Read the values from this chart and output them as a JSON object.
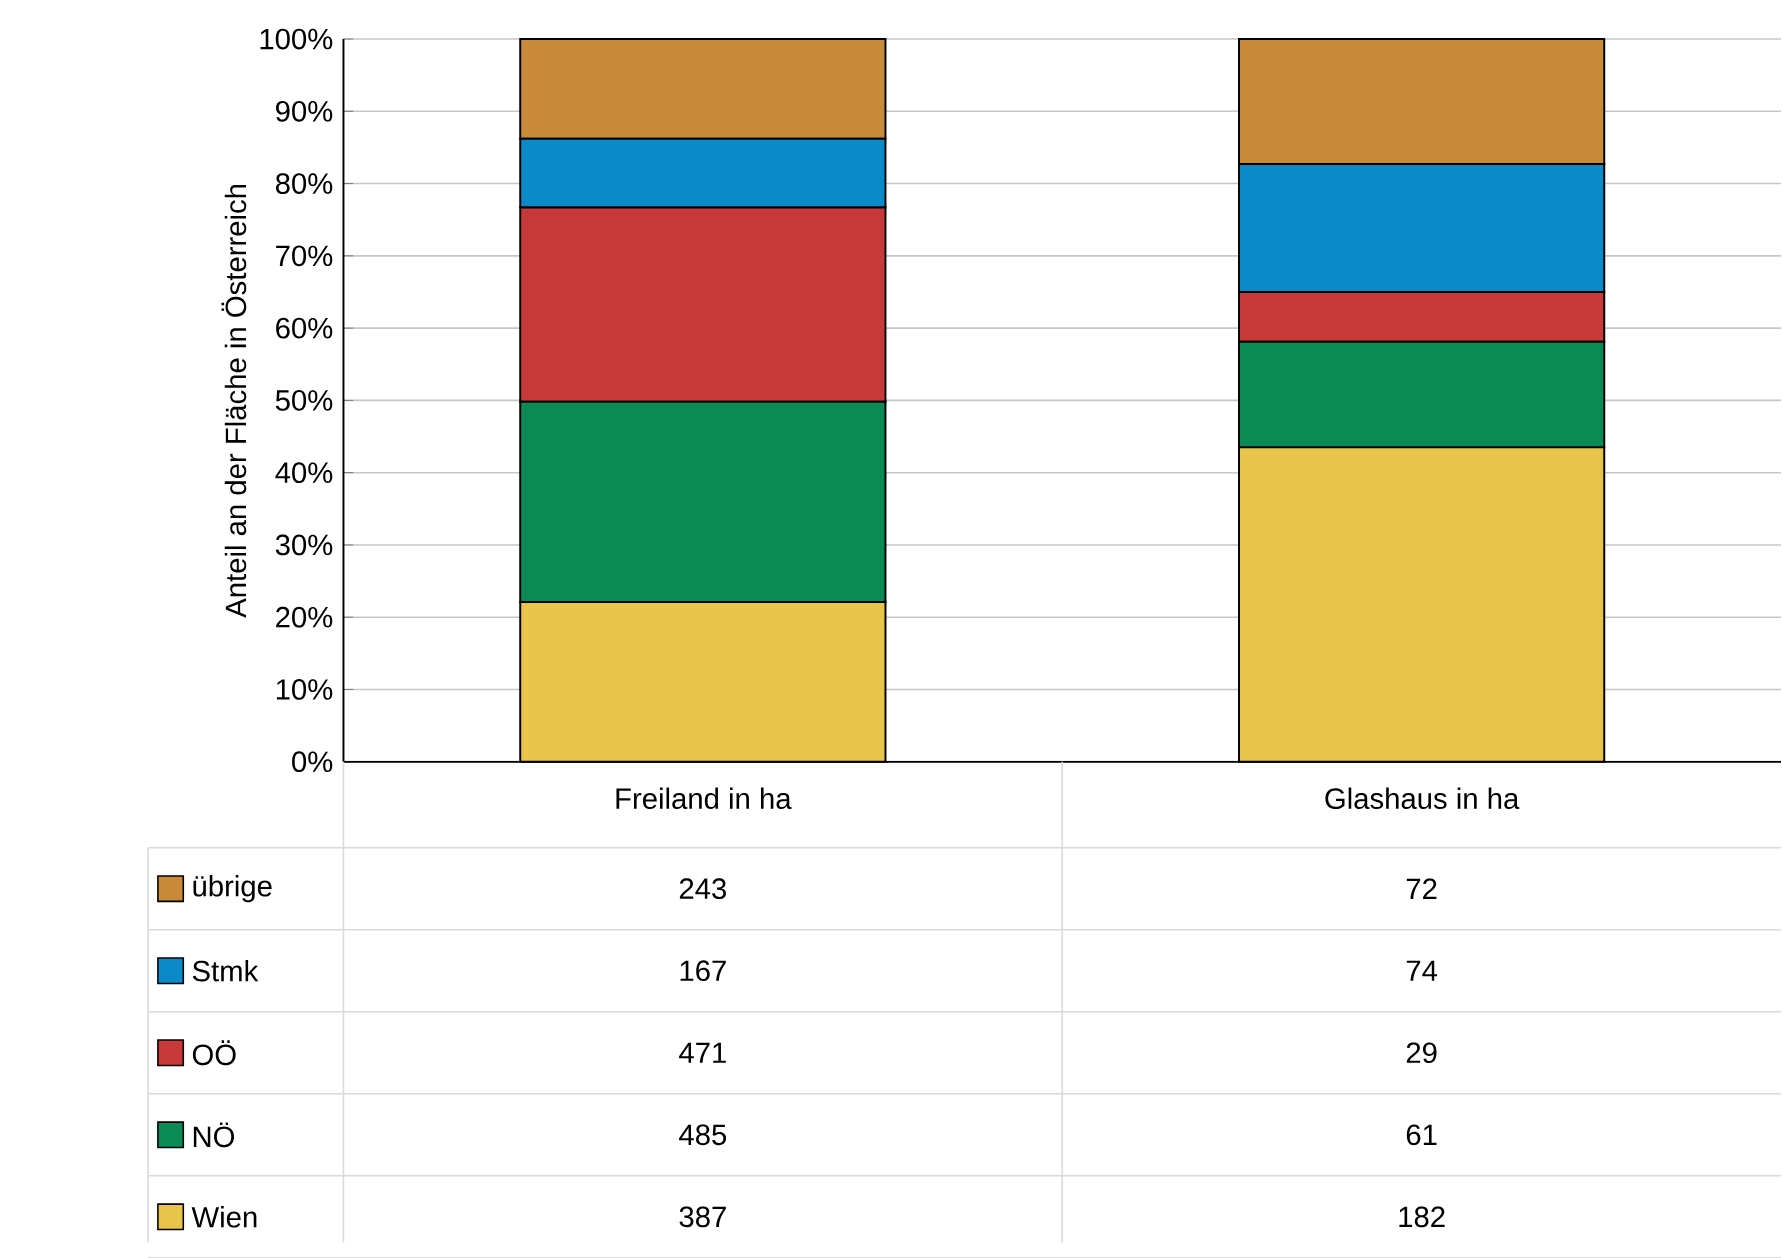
{
  "chart_data": {
    "type": "bar",
    "stacked": true,
    "ylabel": "Anteil an der Fläche in Österreich",
    "categories": [
      "Freiland in ha",
      "Glashaus in ha"
    ],
    "series": [
      {
        "name": "Wien",
        "color": "#e8c44a",
        "values": [
          22.1,
          43.5
        ]
      },
      {
        "name": "NÖ",
        "color": "#0a8a55",
        "values": [
          27.7,
          14.6
        ]
      },
      {
        "name": "OÖ",
        "color": "#c8393a",
        "values": [
          26.9,
          6.9
        ]
      },
      {
        "name": "Stmk",
        "color": "#0a8ac8",
        "values": [
          9.5,
          17.7
        ]
      },
      {
        "name": "übrige",
        "color": "#c98b3a",
        "values": [
          13.8,
          17.3
        ]
      }
    ],
    "annotations": [
      "243",
      "72",
      "167",
      "74",
      "471",
      "29",
      "485",
      "61",
      "387",
      "182"
    ],
    "ylim": [
      0,
      100
    ],
    "yticks": [
      {
        "value": 0,
        "label": "0%"
      },
      {
        "value": 10,
        "label": "10%"
      },
      {
        "value": 20,
        "label": "20%"
      },
      {
        "value": 30,
        "label": "30%"
      },
      {
        "value": 40,
        "label": "40%"
      },
      {
        "value": 50,
        "label": "50%"
      },
      {
        "value": 60,
        "label": "60%"
      },
      {
        "value": 70,
        "label": "70%"
      },
      {
        "value": 80,
        "label": "80%"
      },
      {
        "value": 90,
        "label": "90%"
      },
      {
        "value": 100,
        "label": "100%"
      }
    ],
    "grid": "y",
    "legend": "bottom"
  }
}
